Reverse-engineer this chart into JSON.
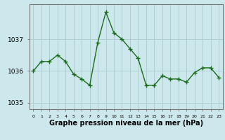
{
  "x": [
    0,
    1,
    2,
    3,
    4,
    5,
    6,
    7,
    8,
    9,
    10,
    11,
    12,
    13,
    14,
    15,
    16,
    17,
    18,
    19,
    20,
    21,
    22,
    23
  ],
  "y": [
    1036.0,
    1036.3,
    1036.3,
    1036.5,
    1036.3,
    1035.9,
    1035.75,
    1035.55,
    1036.9,
    1037.85,
    1037.2,
    1037.0,
    1036.7,
    1036.4,
    1035.55,
    1035.55,
    1035.85,
    1035.75,
    1035.75,
    1035.65,
    1035.95,
    1036.1,
    1036.1,
    1035.8
  ],
  "line_color": "#1a6b1a",
  "marker": "+",
  "markersize": 4,
  "linewidth": 1.0,
  "background_color": "#cce8ec",
  "grid_color": "#aacccc",
  "title": "Graphe pression niveau de la mer (hPa)",
  "title_fontsize": 7,
  "ylabel_ticks": [
    1035,
    1036,
    1037
  ],
  "xtick_labels": [
    "0",
    "1",
    "2",
    "3",
    "4",
    "5",
    "6",
    "7",
    "8",
    "9",
    "10",
    "11",
    "12",
    "13",
    "14",
    "15",
    "16",
    "17",
    "18",
    "19",
    "20",
    "21",
    "22",
    "23"
  ],
  "ylim": [
    1034.8,
    1038.1
  ],
  "xlim": [
    -0.5,
    23.5
  ],
  "spine_color": "#777777"
}
